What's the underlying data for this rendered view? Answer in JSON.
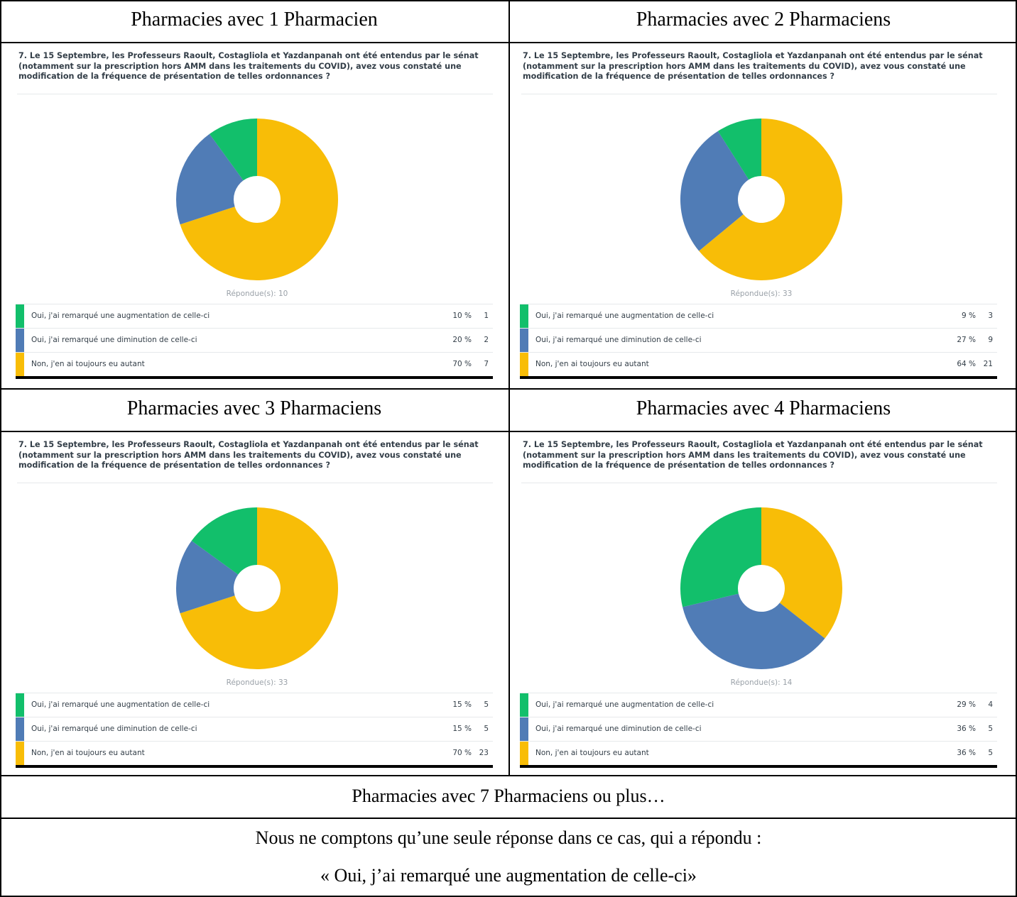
{
  "colors": {
    "green": "#12bf6b",
    "blue": "#507cb6",
    "yellow": "#f8bd07"
  },
  "question": "7. Le 15 Septembre, les Professeurs Raoult, Costagliola et Yazdanpanah ont été entendus par le sénat (notamment sur la prescription hors AMM dans les traitements du COVID), avez vous constaté une modification de la fréquence de présentation de telles ordonnances ?",
  "options": [
    "Oui, j'ai remarqué une augmentation de celle-ci",
    "Oui, j'ai remarqué une diminution de celle-ci",
    "Non, j'en ai toujours eu autant"
  ],
  "panels": [
    {
      "heading": "Pharmacies avec 1 Pharmacien",
      "respondents": "Répondue(s): 10",
      "rows": [
        {
          "pct": "10 %",
          "count": "1"
        },
        {
          "pct": "20 %",
          "count": "2"
        },
        {
          "pct": "70 %",
          "count": "7"
        }
      ]
    },
    {
      "heading": "Pharmacies avec 2 Pharmaciens",
      "respondents": "Répondue(s): 33",
      "rows": [
        {
          "pct": "9 %",
          "count": "3"
        },
        {
          "pct": "27 %",
          "count": "9"
        },
        {
          "pct": "64 %",
          "count": "21"
        }
      ]
    },
    {
      "heading": "Pharmacies avec 3 Pharmaciens",
      "respondents": "Répondue(s): 33",
      "rows": [
        {
          "pct": "15 %",
          "count": "5"
        },
        {
          "pct": "15 %",
          "count": "5"
        },
        {
          "pct": "70 %",
          "count": "23"
        }
      ]
    },
    {
      "heading": "Pharmacies avec 4 Pharmaciens",
      "respondents": "Répondue(s): 14",
      "rows": [
        {
          "pct": "29 %",
          "count": "4"
        },
        {
          "pct": "36 %",
          "count": "5"
        },
        {
          "pct": "36 %",
          "count": "5"
        }
      ]
    }
  ],
  "footer": {
    "heading": "Pharmacies avec 7 Pharmaciens ou plus…",
    "line1": "Nous ne comptons qu’une seule réponse dans ce cas, qui a répondu :",
    "line2": "« Oui, j’ai remarqué une augmentation de celle-ci»"
  },
  "chart_data": [
    {
      "type": "pie",
      "categories": [
        "Oui, j'ai remarqué une augmentation de celle-ci",
        "Oui, j'ai remarqué une diminution de celle-ci",
        "Non, j'en ai toujours eu autant"
      ],
      "values": [
        10,
        20,
        70
      ],
      "counts": [
        1,
        2,
        7
      ],
      "colors": [
        "#12bf6b",
        "#507cb6",
        "#f8bd07"
      ]
    },
    {
      "type": "pie",
      "categories": [
        "Oui, j'ai remarqué une augmentation de celle-ci",
        "Oui, j'ai remarqué une diminution de celle-ci",
        "Non, j'en ai toujours eu autant"
      ],
      "values": [
        9,
        27,
        64
      ],
      "counts": [
        3,
        9,
        21
      ],
      "colors": [
        "#12bf6b",
        "#507cb6",
        "#f8bd07"
      ]
    },
    {
      "type": "pie",
      "categories": [
        "Oui, j'ai remarqué une augmentation de celle-ci",
        "Oui, j'ai remarqué une diminution de celle-ci",
        "Non, j'en ai toujours eu autant"
      ],
      "values": [
        15,
        15,
        70
      ],
      "counts": [
        5,
        5,
        23
      ],
      "colors": [
        "#12bf6b",
        "#507cb6",
        "#f8bd07"
      ]
    },
    {
      "type": "pie",
      "categories": [
        "Oui, j'ai remarqué une augmentation de celle-ci",
        "Oui, j'ai remarqué une diminution de celle-ci",
        "Non, j'en ai toujours eu autant"
      ],
      "values": [
        29,
        36,
        36
      ],
      "counts": [
        4,
        5,
        5
      ],
      "colors": [
        "#12bf6b",
        "#507cb6",
        "#f8bd07"
      ]
    }
  ]
}
